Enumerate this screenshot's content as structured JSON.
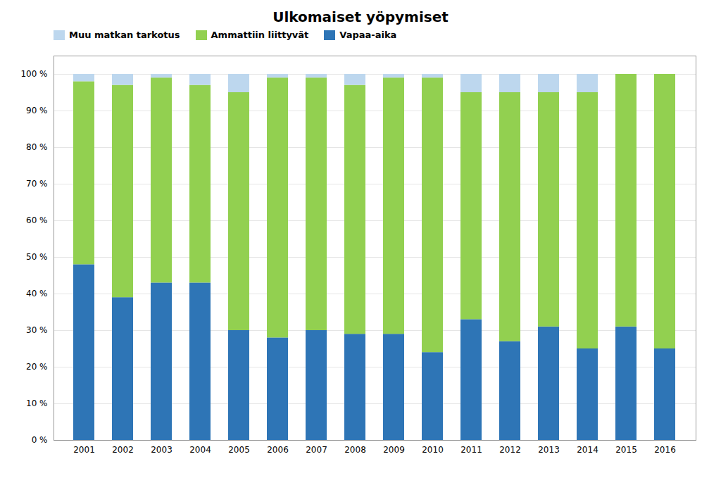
{
  "chart_data": {
    "type": "bar",
    "title": "Ulkomaiset yöpymiset",
    "stacked": true,
    "categories": [
      "2001",
      "2002",
      "2003",
      "2004",
      "2005",
      "2006",
      "2007",
      "2008",
      "2009",
      "2010",
      "2011",
      "2012",
      "2013",
      "2014",
      "2015",
      "2016"
    ],
    "series": [
      {
        "name": "Vapaa-aika",
        "color": "#2E75B6",
        "values": [
          48,
          39,
          43,
          43,
          30,
          28,
          30,
          29,
          29,
          24,
          33,
          27,
          31,
          25,
          31,
          25
        ]
      },
      {
        "name": "Ammattiin liittyvät",
        "color": "#92D050",
        "values": [
          50,
          58,
          56,
          54,
          65,
          71,
          69,
          68,
          70,
          75,
          62,
          68,
          64,
          70,
          69,
          75
        ]
      },
      {
        "name": "Muu matkan tarkotus",
        "color": "#BDD7EE",
        "values": [
          2,
          3,
          1,
          3,
          5,
          1,
          1,
          3,
          1,
          1,
          5,
          5,
          5,
          5,
          0,
          0
        ]
      }
    ],
    "ylim": [
      0,
      105
    ],
    "yticks": [
      {
        "value": 0,
        "label": "0 %"
      },
      {
        "value": 10,
        "label": "10 %"
      },
      {
        "value": 20,
        "label": "20 %"
      },
      {
        "value": 30,
        "label": "30 %"
      },
      {
        "value": 40,
        "label": "40 %"
      },
      {
        "value": 50,
        "label": "50 %"
      },
      {
        "value": 60,
        "label": "60 %"
      },
      {
        "value": 70,
        "label": "70 %"
      },
      {
        "value": 80,
        "label": "80 %"
      },
      {
        "value": 90,
        "label": "90 %"
      },
      {
        "value": 100,
        "label": "100 %"
      }
    ],
    "grid": true,
    "legend": "upper left"
  }
}
